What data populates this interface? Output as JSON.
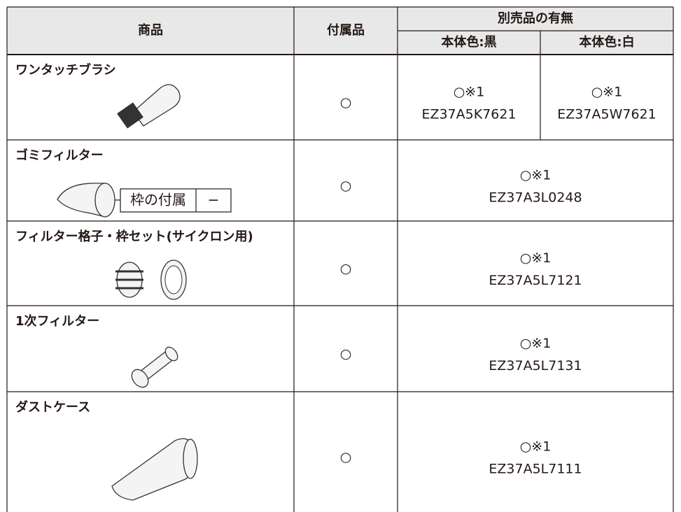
{
  "header": {
    "product": "商品",
    "included": "付属品",
    "optional": "別売品の有無",
    "black": "本体色:黒",
    "white": "本体色:白"
  },
  "rows": [
    {
      "name": "ワンタッチブラシ",
      "included": "○",
      "black": {
        "mark": "○※1",
        "part": "EZ37A5K7621"
      },
      "white": {
        "mark": "○※1",
        "part": "EZ37A5W7621"
      }
    },
    {
      "name": "ゴミフィルター",
      "callout": {
        "label": "枠の付属",
        "value": "−"
      },
      "included": "○",
      "optional": {
        "mark": "○※1",
        "part": "EZ37A3L0248"
      }
    },
    {
      "name": "フィルター格子・枠セット(サイクロン用)",
      "included": "○",
      "optional": {
        "mark": "○※1",
        "part": "EZ37A5L7121"
      }
    },
    {
      "name": "1次フィルター",
      "included": "○",
      "optional": {
        "mark": "○※1",
        "part": "EZ37A5L7131"
      }
    },
    {
      "name": "ダストケース",
      "included": "○",
      "optional": {
        "mark": "○※1",
        "part": "EZ37A5L7111"
      }
    }
  ]
}
